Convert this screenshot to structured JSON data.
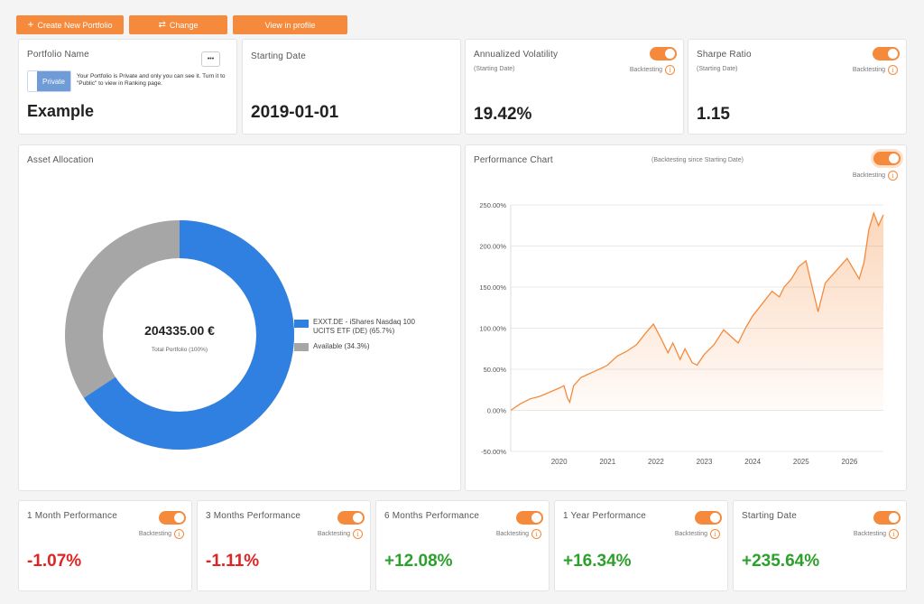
{
  "toolbar": {
    "create_label": "Create New Portfolio",
    "change_label": "Change",
    "profile_label": "View in profile",
    "create_icon": "plus-icon",
    "change_icon": "swap-arrows-icon"
  },
  "portfolio": {
    "title": "Portfolio Name",
    "menu_label": "•••",
    "privacy_button": "Private",
    "privacy_note": "Your Portfolio is Private and only you can see it. Turn it to \"Public\" to view in Ranking page.",
    "name": "Example"
  },
  "starting_date_card": {
    "title": "Starting Date",
    "value": "2019-01-01"
  },
  "volatility": {
    "title": "Annualized Volatility",
    "subtitle": "(Starting Date)",
    "backtesting": "Backtesting",
    "value": "19.42%"
  },
  "sharpe": {
    "title": "Sharpe Ratio",
    "subtitle": "(Starting Date)",
    "backtesting": "Backtesting",
    "value": "1.15"
  },
  "info_glyph": "i",
  "allocation": {
    "title": "Asset Allocation",
    "total_value": "204335.00 €",
    "total_label": "Total Portfolio (100%)",
    "legend": [
      {
        "label_line1": "EXXT.DE - iShares Nasdaq 100",
        "label_line2": "UCITS ETF (DE) (65.7%)",
        "color": "#2f80e0"
      },
      {
        "label_line1": "Available (34.3%)",
        "label_line2": "",
        "color": "#a6a6a6"
      }
    ]
  },
  "performance": {
    "title": "Performance Chart",
    "subtitle": "(Backtesting since Starting Date)",
    "backtesting": "Backtesting"
  },
  "chart_data": {
    "type": "area",
    "color": "#f58a3c",
    "x_ticks": [
      "2020",
      "2021",
      "2022",
      "2023",
      "2024",
      "2025",
      "2026"
    ],
    "y_ticks": [
      "250.00%",
      "200.00%",
      "150.00%",
      "100.00%",
      "50.00%",
      "0.00%",
      "-50.00%"
    ],
    "ylim": [
      -50,
      250
    ],
    "xlim": [
      2019.0,
      2026.7
    ],
    "x": [
      2019.0,
      2019.2,
      2019.4,
      2019.6,
      2019.8,
      2020.0,
      2020.1,
      2020.17,
      2020.22,
      2020.3,
      2020.45,
      2020.6,
      2020.75,
      2020.9,
      2021.0,
      2021.2,
      2021.4,
      2021.6,
      2021.8,
      2021.95,
      2022.1,
      2022.25,
      2022.35,
      2022.5,
      2022.6,
      2022.75,
      2022.85,
      2023.0,
      2023.2,
      2023.4,
      2023.55,
      2023.7,
      2023.85,
      2024.0,
      2024.2,
      2024.4,
      2024.55,
      2024.65,
      2024.8,
      2024.95,
      2025.1,
      2025.25,
      2025.35,
      2025.5,
      2025.65,
      2025.8,
      2025.95,
      2026.1,
      2026.2,
      2026.3,
      2026.4,
      2026.5,
      2026.6,
      2026.7
    ],
    "values": [
      0,
      8,
      14,
      17,
      22,
      27,
      30,
      15,
      10,
      30,
      40,
      44,
      48,
      52,
      55,
      66,
      72,
      80,
      95,
      105,
      88,
      70,
      82,
      62,
      75,
      58,
      55,
      68,
      80,
      98,
      90,
      82,
      100,
      115,
      130,
      145,
      138,
      150,
      160,
      175,
      182,
      145,
      120,
      155,
      165,
      175,
      185,
      170,
      160,
      180,
      220,
      240,
      225,
      238
    ]
  },
  "cards_bottom": [
    {
      "title": "1 Month Performance",
      "backtesting": "Backtesting",
      "value": "-1.07%",
      "sign": "neg"
    },
    {
      "title": "3 Months Performance",
      "backtesting": "Backtesting",
      "value": "-1.11%",
      "sign": "neg"
    },
    {
      "title": "6 Months Performance",
      "backtesting": "Backtesting",
      "value": "+12.08%",
      "sign": "pos"
    },
    {
      "title": "1 Year Performance",
      "backtesting": "Backtesting",
      "value": "+16.34%",
      "sign": "pos"
    },
    {
      "title": "Starting Date",
      "backtesting": "Backtesting",
      "value": "+235.64%",
      "sign": "pos"
    }
  ]
}
